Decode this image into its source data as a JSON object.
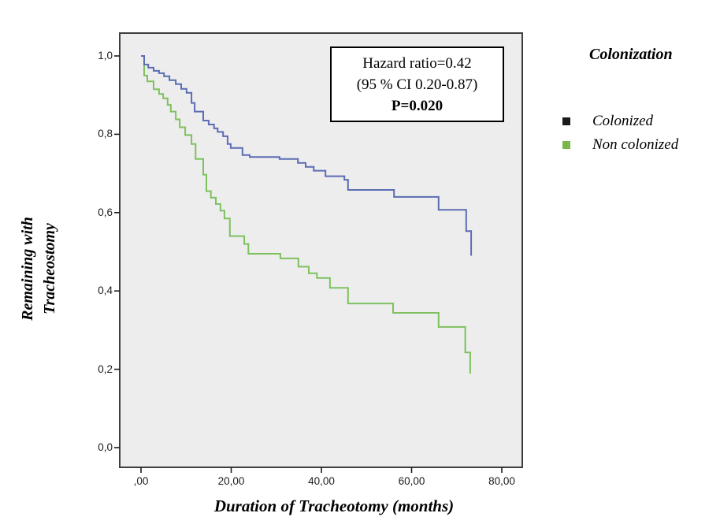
{
  "page": {
    "background": "#ffffff"
  },
  "chart_data": {
    "type": "line",
    "subtype": "kaplan-meier-step-survival",
    "title": "",
    "xlabel": "Duration of Tracheotomy (months)",
    "ylabel_lines": [
      "Remaining with",
      "Tracheostomy"
    ],
    "xlim": [
      0,
      80
    ],
    "ylim": [
      0.0,
      1.0
    ],
    "grid": false,
    "plot_background": "#ededed",
    "frame_color": "#3e3e3e",
    "tick_color": "#1c1c1c",
    "x_ticks": {
      "values": [
        0,
        20,
        40,
        60,
        80
      ],
      "labels": [
        ",00",
        "20,00",
        "40,00",
        "60,00",
        "80,00"
      ]
    },
    "y_ticks": {
      "values": [
        0.0,
        0.2,
        0.4,
        0.6,
        0.8,
        1.0
      ],
      "labels": [
        "0,0",
        "0,2",
        "0,4",
        "0,6",
        "0,8",
        "1,0"
      ]
    },
    "legend": {
      "position": "right",
      "title": "Colonization"
    },
    "annotation": {
      "lines": [
        "Hazard ratio=0.42",
        "(95 % CI 0.20-0.87)",
        "P=0.020"
      ],
      "bold_line_index": 2
    },
    "series": [
      {
        "name": "Colonized",
        "line_color": "#5b6cb4",
        "marker_color": "#1b1b1b",
        "points": [
          [
            0,
            1.0
          ],
          [
            0.7,
            0.978
          ],
          [
            1.6,
            0.97
          ],
          [
            2.8,
            0.962
          ],
          [
            4.0,
            0.956
          ],
          [
            5.1,
            0.948
          ],
          [
            6.3,
            0.938
          ],
          [
            7.7,
            0.928
          ],
          [
            8.9,
            0.916
          ],
          [
            10.1,
            0.906
          ],
          [
            11.2,
            0.88
          ],
          [
            11.9,
            0.858
          ],
          [
            13.8,
            0.835
          ],
          [
            15.0,
            0.825
          ],
          [
            16.2,
            0.815
          ],
          [
            17.0,
            0.806
          ],
          [
            18.2,
            0.795
          ],
          [
            19.2,
            0.775
          ],
          [
            19.9,
            0.765
          ],
          [
            22.5,
            0.747
          ],
          [
            24.1,
            0.742
          ],
          [
            30.7,
            0.737
          ],
          [
            34.8,
            0.727
          ],
          [
            36.5,
            0.717
          ],
          [
            38.3,
            0.707
          ],
          [
            40.9,
            0.693
          ],
          [
            45.1,
            0.684
          ],
          [
            45.9,
            0.658
          ],
          [
            56.1,
            0.64
          ],
          [
            66.0,
            0.607
          ],
          [
            72.1,
            0.553
          ],
          [
            73.2,
            0.49
          ]
        ]
      },
      {
        "name": "Non colonized",
        "line_color": "#7ec15e",
        "marker_color": "#7ab648",
        "points": [
          [
            0,
            1.0
          ],
          [
            0.7,
            0.95
          ],
          [
            1.4,
            0.935
          ],
          [
            2.8,
            0.915
          ],
          [
            4.0,
            0.903
          ],
          [
            4.9,
            0.892
          ],
          [
            5.9,
            0.875
          ],
          [
            6.6,
            0.858
          ],
          [
            7.7,
            0.838
          ],
          [
            8.6,
            0.818
          ],
          [
            9.8,
            0.798
          ],
          [
            11.2,
            0.775
          ],
          [
            12.1,
            0.737
          ],
          [
            13.8,
            0.697
          ],
          [
            14.5,
            0.655
          ],
          [
            15.5,
            0.638
          ],
          [
            16.6,
            0.622
          ],
          [
            17.6,
            0.605
          ],
          [
            18.5,
            0.585
          ],
          [
            19.7,
            0.54
          ],
          [
            22.9,
            0.52
          ],
          [
            23.8,
            0.495
          ],
          [
            30.9,
            0.483
          ],
          [
            34.9,
            0.462
          ],
          [
            37.2,
            0.445
          ],
          [
            39.0,
            0.433
          ],
          [
            41.9,
            0.408
          ],
          [
            45.9,
            0.368
          ],
          [
            55.9,
            0.344
          ],
          [
            66.0,
            0.308
          ],
          [
            71.9,
            0.243
          ],
          [
            73.0,
            0.189
          ]
        ]
      }
    ]
  }
}
